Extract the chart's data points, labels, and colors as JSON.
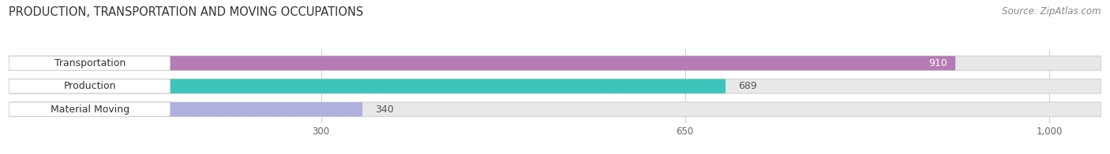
{
  "title": "PRODUCTION, TRANSPORTATION AND MOVING OCCUPATIONS",
  "source": "Source: ZipAtlas.com",
  "categories": [
    "Transportation",
    "Production",
    "Material Moving"
  ],
  "values": [
    910,
    689,
    340
  ],
  "bar_colors": [
    "#b57bb5",
    "#3fc4bc",
    "#b0b0df"
  ],
  "track_color": "#e8e8e8",
  "x_max": 1050,
  "x_ticks": [
    300,
    650,
    1000
  ],
  "x_tick_labels": [
    "300",
    "650",
    "1,000"
  ],
  "title_fontsize": 10.5,
  "source_fontsize": 8.5,
  "label_fontsize": 9,
  "value_fontsize": 9,
  "bar_height": 0.62,
  "bar_gap": 1.1,
  "background_color": "#ffffff",
  "value_inside_threshold": 700
}
